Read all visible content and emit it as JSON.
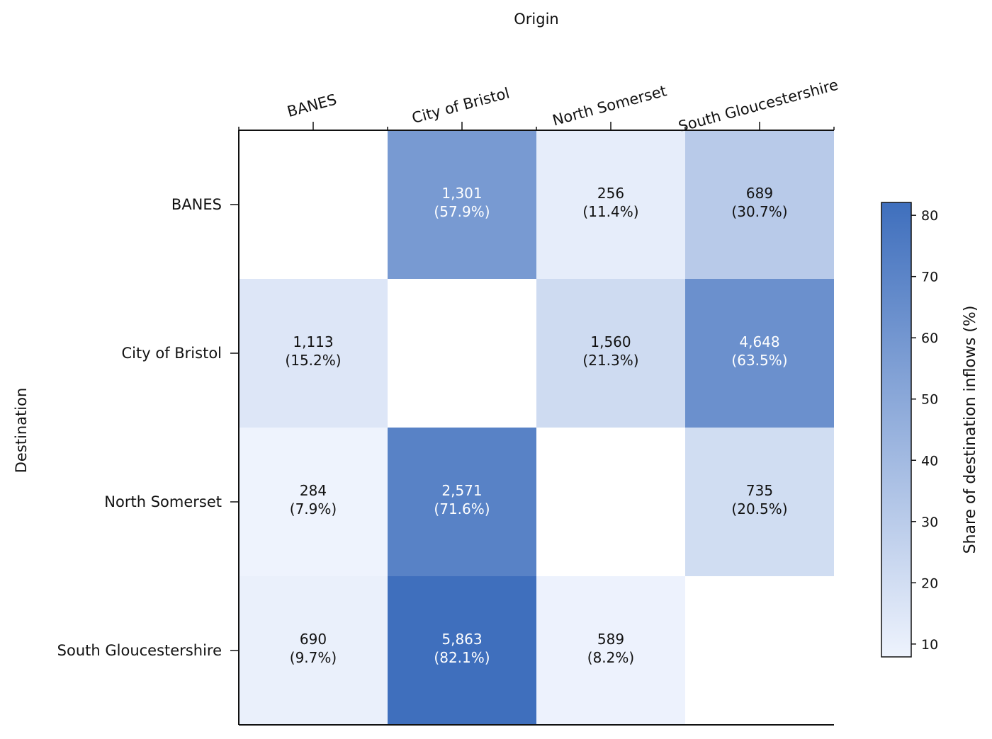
{
  "chart_data": {
    "type": "heatmap",
    "title": "",
    "xlabel": "Origin",
    "ylabel": "Destination",
    "x_categories": [
      "BANES",
      "City of Bristol",
      "North Somerset",
      "South Gloucestershire"
    ],
    "y_categories": [
      "BANES",
      "City of Bristol",
      "North Somerset",
      "South Gloucestershire"
    ],
    "counts": [
      [
        null,
        1301,
        256,
        689
      ],
      [
        1113,
        null,
        1560,
        4648
      ],
      [
        284,
        2571,
        null,
        735
      ],
      [
        690,
        5863,
        589,
        null
      ]
    ],
    "shares": [
      [
        null,
        57.9,
        11.4,
        30.7
      ],
      [
        15.2,
        null,
        21.3,
        63.5
      ],
      [
        7.9,
        71.6,
        null,
        20.5
      ],
      [
        9.7,
        82.1,
        8.2,
        null
      ]
    ],
    "cell_labels": [
      [
        null,
        [
          "1,301",
          "(57.9%)"
        ],
        [
          "256",
          "(11.4%)"
        ],
        [
          "689",
          "(30.7%)"
        ]
      ],
      [
        [
          "1,113",
          "(15.2%)"
        ],
        null,
        [
          "1,560",
          "(21.3%)"
        ],
        [
          "4,648",
          "(63.5%)"
        ]
      ],
      [
        [
          "284",
          "(7.9%)"
        ],
        [
          "2,571",
          "(71.6%)"
        ],
        null,
        [
          "735",
          "(20.5%)"
        ]
      ],
      [
        [
          "690",
          "(9.7%)"
        ],
        [
          "5,863",
          "(82.1%)"
        ],
        [
          "589",
          "(8.2%)"
        ],
        null
      ]
    ],
    "colorbar": {
      "label": "Share of destination inflows (%)",
      "range": [
        7.9,
        82.1
      ],
      "ticks": [
        10,
        20,
        30,
        40,
        50,
        60,
        70,
        80
      ],
      "color_low": "#eef3fd",
      "color_high": "#3f6fbd"
    },
    "x_axis_position": "top",
    "grid": false,
    "legend": "colorbar-right"
  }
}
